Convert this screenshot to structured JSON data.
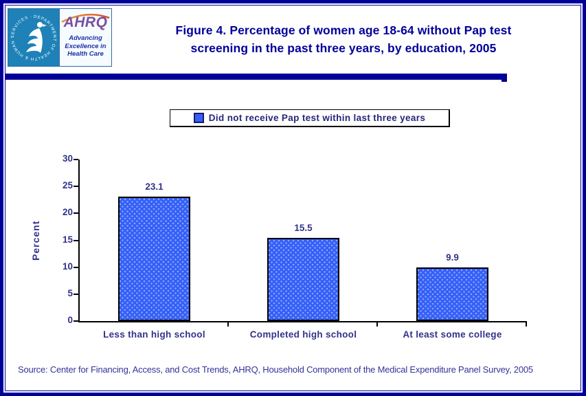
{
  "header": {
    "title_lines": [
      "Figure 4. Percentage of women age 18-64 without Pap test",
      "screening in the past three years, by education, 2005"
    ]
  },
  "logo": {
    "org_abbrev": "AHRQ",
    "tagline_lines": [
      "Advancing",
      "Excellence in",
      "Health Care"
    ],
    "seal_text": "DEPARTMENT OF HEALTH & HUMAN SERVICES · USA"
  },
  "legend": {
    "label": "Did not receive Pap test within last three years"
  },
  "chart_data": {
    "type": "bar",
    "title": "Figure 4. Percentage of women age 18-64 without Pap test screening in the past three years, by education, 2005",
    "categories": [
      "Less than high school",
      "Completed high school",
      "At least some college"
    ],
    "values": [
      23.1,
      15.5,
      9.9
    ],
    "data_labels": [
      "23.1",
      "15.5",
      "9.9"
    ],
    "xlabel": "",
    "ylabel": "Percent",
    "ylim": [
      0,
      30
    ],
    "yticks": [
      0,
      5,
      10,
      15,
      20,
      25,
      30
    ],
    "grid": false,
    "legend_entries": [
      "Did not receive Pap test within last three years"
    ],
    "legend_position": "top",
    "bar_color": "#3560f7",
    "bar_border_color": "#000000"
  },
  "source": {
    "text": "Source: Center for Financing, Access, and Cost Trends, AHRQ, Household Component of the Medical Expenditure Panel Survey, 2005"
  },
  "colors": {
    "accent_navy": "#000099",
    "chart_text": "#32328c",
    "hhs_blue": "#1e82b8",
    "ahrq_purple": "#7a4fa0",
    "arc_orange": "#e89435",
    "arc_red": "#c84b28"
  }
}
